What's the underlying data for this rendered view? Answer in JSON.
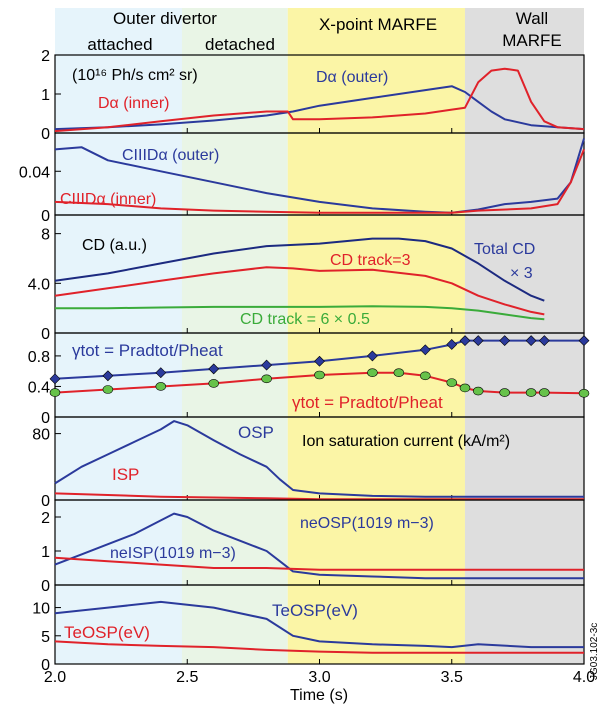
{
  "chart_data": [
    {
      "type": "line",
      "panel_id": "panel-1",
      "title": "",
      "ylabel_text": "(10¹⁶ Ph/s cm² sr)",
      "ylim": [
        0,
        2
      ],
      "yticks": [
        0,
        1,
        2
      ],
      "annotations": {
        "outer_label": "Dα (outer)",
        "inner_label": "Dα (inner)"
      },
      "series": [
        {
          "name": "Dα (outer)",
          "color": "#2b3a9c",
          "x": [
            2.0,
            2.2,
            2.4,
            2.6,
            2.8,
            2.9,
            3.0,
            3.2,
            3.4,
            3.5,
            3.55,
            3.6,
            3.65,
            3.7,
            3.8,
            3.9,
            4.0
          ],
          "y": [
            0.1,
            0.15,
            0.22,
            0.32,
            0.45,
            0.55,
            0.7,
            0.9,
            1.1,
            1.2,
            1.05,
            0.8,
            0.55,
            0.35,
            0.2,
            0.15,
            0.1
          ]
        },
        {
          "name": "Dα (inner)",
          "color": "#e0222a",
          "x": [
            2.0,
            2.2,
            2.4,
            2.6,
            2.8,
            2.88,
            2.9,
            3.0,
            3.2,
            3.4,
            3.5,
            3.55,
            3.6,
            3.65,
            3.7,
            3.75,
            3.8,
            3.85,
            3.9,
            4.0
          ],
          "y": [
            0.05,
            0.15,
            0.3,
            0.45,
            0.55,
            0.55,
            0.35,
            0.35,
            0.4,
            0.5,
            0.6,
            0.65,
            1.3,
            1.6,
            1.65,
            1.6,
            0.8,
            0.3,
            0.15,
            0.1
          ]
        }
      ]
    },
    {
      "type": "line",
      "panel_id": "panel-2",
      "ylim": [
        0,
        0.075
      ],
      "yticks": [
        0,
        0.04
      ],
      "ytick_labels": [
        "0",
        "0.04"
      ],
      "annotations": {
        "outer_label": "CIIIDα (outer)",
        "inner_label": "CIIIDα (inner)"
      },
      "series": [
        {
          "name": "CIIIDα (outer)",
          "color": "#2b3a9c",
          "x": [
            2.0,
            2.1,
            2.2,
            2.4,
            2.6,
            2.8,
            3.0,
            3.2,
            3.4,
            3.5,
            3.6,
            3.7,
            3.8,
            3.9,
            3.95,
            4.0
          ],
          "y": [
            0.06,
            0.062,
            0.05,
            0.04,
            0.03,
            0.02,
            0.012,
            0.006,
            0.003,
            0.002,
            0.005,
            0.01,
            0.012,
            0.015,
            0.03,
            0.07
          ]
        },
        {
          "name": "CIIIDα (inner)",
          "color": "#e0222a",
          "x": [
            2.0,
            2.2,
            2.4,
            2.6,
            2.8,
            3.0,
            3.2,
            3.4,
            3.5,
            3.6,
            3.8,
            3.9,
            3.95,
            4.0
          ],
          "y": [
            0.012,
            0.01,
            0.006,
            0.004,
            0.003,
            0.002,
            0.002,
            0.002,
            0.002,
            0.004,
            0.006,
            0.01,
            0.03,
            0.06
          ]
        }
      ]
    },
    {
      "type": "line",
      "panel_id": "panel-3",
      "ylim": [
        0,
        9.5
      ],
      "yticks": [
        0,
        4.0,
        8
      ],
      "ytick_labels": [
        "0",
        "4.0",
        "8"
      ],
      "annotations": {
        "cd_label": "CD (a.u.)",
        "total_label": "Total CD",
        "total_label_2": "× 3",
        "track3_label": "CD track=3",
        "track6_label": "CD track = 6 × 0.5"
      },
      "series": [
        {
          "name": "Total CD",
          "color": "#1c2a80",
          "x": [
            2.0,
            2.2,
            2.4,
            2.6,
            2.8,
            3.0,
            3.1,
            3.2,
            3.3,
            3.4,
            3.5,
            3.6,
            3.7,
            3.8,
            3.85
          ],
          "y": [
            4.2,
            4.8,
            5.6,
            6.4,
            7.0,
            7.2,
            7.4,
            7.6,
            7.6,
            7.4,
            6.8,
            5.6,
            4.2,
            3.0,
            2.6
          ]
        },
        {
          "name": "CD track=3",
          "color": "#e0222a",
          "x": [
            2.0,
            2.2,
            2.4,
            2.6,
            2.8,
            2.9,
            3.0,
            3.2,
            3.4,
            3.5,
            3.6,
            3.7,
            3.8,
            3.85
          ],
          "y": [
            3.0,
            3.6,
            4.2,
            4.8,
            5.3,
            5.2,
            5.0,
            5.1,
            4.6,
            4.0,
            3.0,
            2.3,
            1.7,
            1.5
          ]
        },
        {
          "name": "CD track = 6 × 0.5",
          "color": "#3aab3a",
          "x": [
            2.0,
            2.2,
            2.4,
            2.6,
            2.8,
            3.0,
            3.2,
            3.4,
            3.5,
            3.6,
            3.7,
            3.8,
            3.85
          ],
          "y": [
            2.0,
            2.0,
            2.05,
            2.1,
            2.1,
            2.1,
            2.15,
            2.1,
            2.0,
            1.8,
            1.5,
            1.2,
            1.1
          ]
        }
      ]
    },
    {
      "type": "line",
      "panel_id": "panel-4",
      "ylim": [
        0,
        1.1
      ],
      "yticks": [
        0,
        0.4,
        0.8
      ],
      "ytick_labels": [
        "0",
        "0.4",
        "0.8"
      ],
      "annotations": {
        "gamma_top": "γtot = Pradtot/Pheat",
        "gamma_bottom": "γtot = Pradtot/Pheat"
      },
      "series": [
        {
          "name": "γtot (upper)",
          "color": "#2b3a9c",
          "marker": "diamond",
          "marker_fill": "#2b3a9c",
          "x": [
            2.0,
            2.2,
            2.4,
            2.6,
            2.8,
            3.0,
            3.2,
            3.4,
            3.5,
            3.55,
            3.6,
            3.7,
            3.8,
            3.85,
            4.0
          ],
          "y": [
            0.5,
            0.54,
            0.58,
            0.63,
            0.68,
            0.73,
            0.8,
            0.88,
            0.95,
            1.0,
            1.0,
            1.0,
            1.0,
            1.0,
            1.0
          ]
        },
        {
          "name": "γtot (lower)",
          "color": "#e0222a",
          "marker": "circle",
          "marker_fill": "#66c24a",
          "x": [
            2.0,
            2.2,
            2.4,
            2.6,
            2.8,
            3.0,
            3.2,
            3.3,
            3.4,
            3.5,
            3.55,
            3.6,
            3.7,
            3.8,
            3.85,
            4.0
          ],
          "y": [
            0.32,
            0.36,
            0.4,
            0.44,
            0.5,
            0.55,
            0.58,
            0.58,
            0.54,
            0.45,
            0.38,
            0.34,
            0.32,
            0.32,
            0.32,
            0.31
          ]
        }
      ]
    },
    {
      "type": "line",
      "panel_id": "panel-5",
      "ylim": [
        0,
        100
      ],
      "yticks": [
        0,
        80
      ],
      "ytick_labels": [
        "0",
        "80"
      ],
      "annotations": {
        "osp_label": "OSP",
        "isp_label": "ISP",
        "title_label": "Ion saturation current (kA/m²)"
      },
      "series": [
        {
          "name": "OSP",
          "color": "#2b3a9c",
          "x": [
            2.0,
            2.1,
            2.2,
            2.3,
            2.4,
            2.45,
            2.5,
            2.6,
            2.7,
            2.8,
            2.85,
            2.9,
            3.0,
            3.2,
            3.4,
            3.6,
            3.8,
            4.0
          ],
          "y": [
            20,
            40,
            55,
            70,
            85,
            95,
            90,
            72,
            55,
            40,
            25,
            12,
            8,
            5,
            4,
            4,
            4,
            4
          ]
        },
        {
          "name": "ISP",
          "color": "#e0222a",
          "x": [
            2.0,
            2.2,
            2.4,
            2.6,
            2.8,
            3.0,
            3.2,
            3.4,
            3.6,
            3.8,
            4.0
          ],
          "y": [
            8,
            6,
            4,
            3,
            2,
            1,
            1,
            1,
            1,
            1,
            1
          ]
        }
      ]
    },
    {
      "type": "line",
      "panel_id": "panel-6",
      "ylim": [
        0,
        2.5
      ],
      "yticks": [
        0,
        1,
        2
      ],
      "annotations": {
        "osp_label": "neOSP(1019 m−3)",
        "isp_label": "neISP(1019 m−3)"
      },
      "series": [
        {
          "name": "neOSP",
          "color": "#2b3a9c",
          "x": [
            2.0,
            2.1,
            2.2,
            2.3,
            2.4,
            2.45,
            2.5,
            2.6,
            2.7,
            2.8,
            2.85,
            2.9,
            3.0,
            3.2,
            3.4,
            3.6,
            3.8,
            4.0
          ],
          "y": [
            0.6,
            0.9,
            1.2,
            1.5,
            1.9,
            2.1,
            2.0,
            1.6,
            1.3,
            1.0,
            0.7,
            0.4,
            0.3,
            0.25,
            0.2,
            0.2,
            0.2,
            0.2
          ]
        },
        {
          "name": "neISP",
          "color": "#e0222a",
          "x": [
            2.0,
            2.2,
            2.4,
            2.6,
            2.8,
            3.0,
            3.2,
            3.4,
            3.6,
            3.8,
            4.0
          ],
          "y": [
            0.8,
            0.7,
            0.6,
            0.5,
            0.5,
            0.45,
            0.45,
            0.45,
            0.45,
            0.45,
            0.45
          ]
        }
      ]
    },
    {
      "type": "line",
      "panel_id": "panel-7",
      "ylim": [
        0,
        14
      ],
      "yticks": [
        0,
        5,
        10
      ],
      "xlim": [
        2.0,
        4.0
      ],
      "xticks": [
        "2.0",
        "2.5",
        "3.0",
        "3.5",
        "4.0"
      ],
      "xlabel": "Time (s)",
      "annotations": {
        "osp_label": "TeOSP(eV)",
        "isp_label": "TeOSP(eV)"
      },
      "series": [
        {
          "name": "TeOSP (blue)",
          "color": "#2b3a9c",
          "x": [
            2.0,
            2.2,
            2.4,
            2.6,
            2.8,
            2.9,
            3.0,
            3.2,
            3.4,
            3.5,
            3.6,
            3.8,
            4.0
          ],
          "y": [
            9,
            10,
            11,
            10,
            8,
            5,
            4,
            3.5,
            3.2,
            3,
            3.5,
            3,
            3
          ]
        },
        {
          "name": "TeOSP (red)",
          "color": "#e0222a",
          "x": [
            2.0,
            2.2,
            2.4,
            2.6,
            2.8,
            3.0,
            3.2,
            3.4,
            3.6,
            3.8,
            4.0
          ],
          "y": [
            4,
            3.5,
            3.2,
            3,
            2.5,
            2.2,
            2,
            2,
            2,
            2,
            2
          ]
        }
      ]
    }
  ],
  "header": {
    "outer_divertor": "Outer divertor",
    "attached": "attached",
    "detached": "detached",
    "xpoint": "X-point MARFE",
    "wall_1": "Wall",
    "wall_2": "MARFE"
  },
  "side_label": "JG03.102-3c",
  "region_colors": {
    "attached": "#e6f4fb",
    "detached": "#e9f5e6",
    "xpoint": "#fbf5a6",
    "wall": "#dedede"
  },
  "region_bounds_time": [
    2.0,
    2.48,
    2.88,
    3.55,
    4.0
  ]
}
